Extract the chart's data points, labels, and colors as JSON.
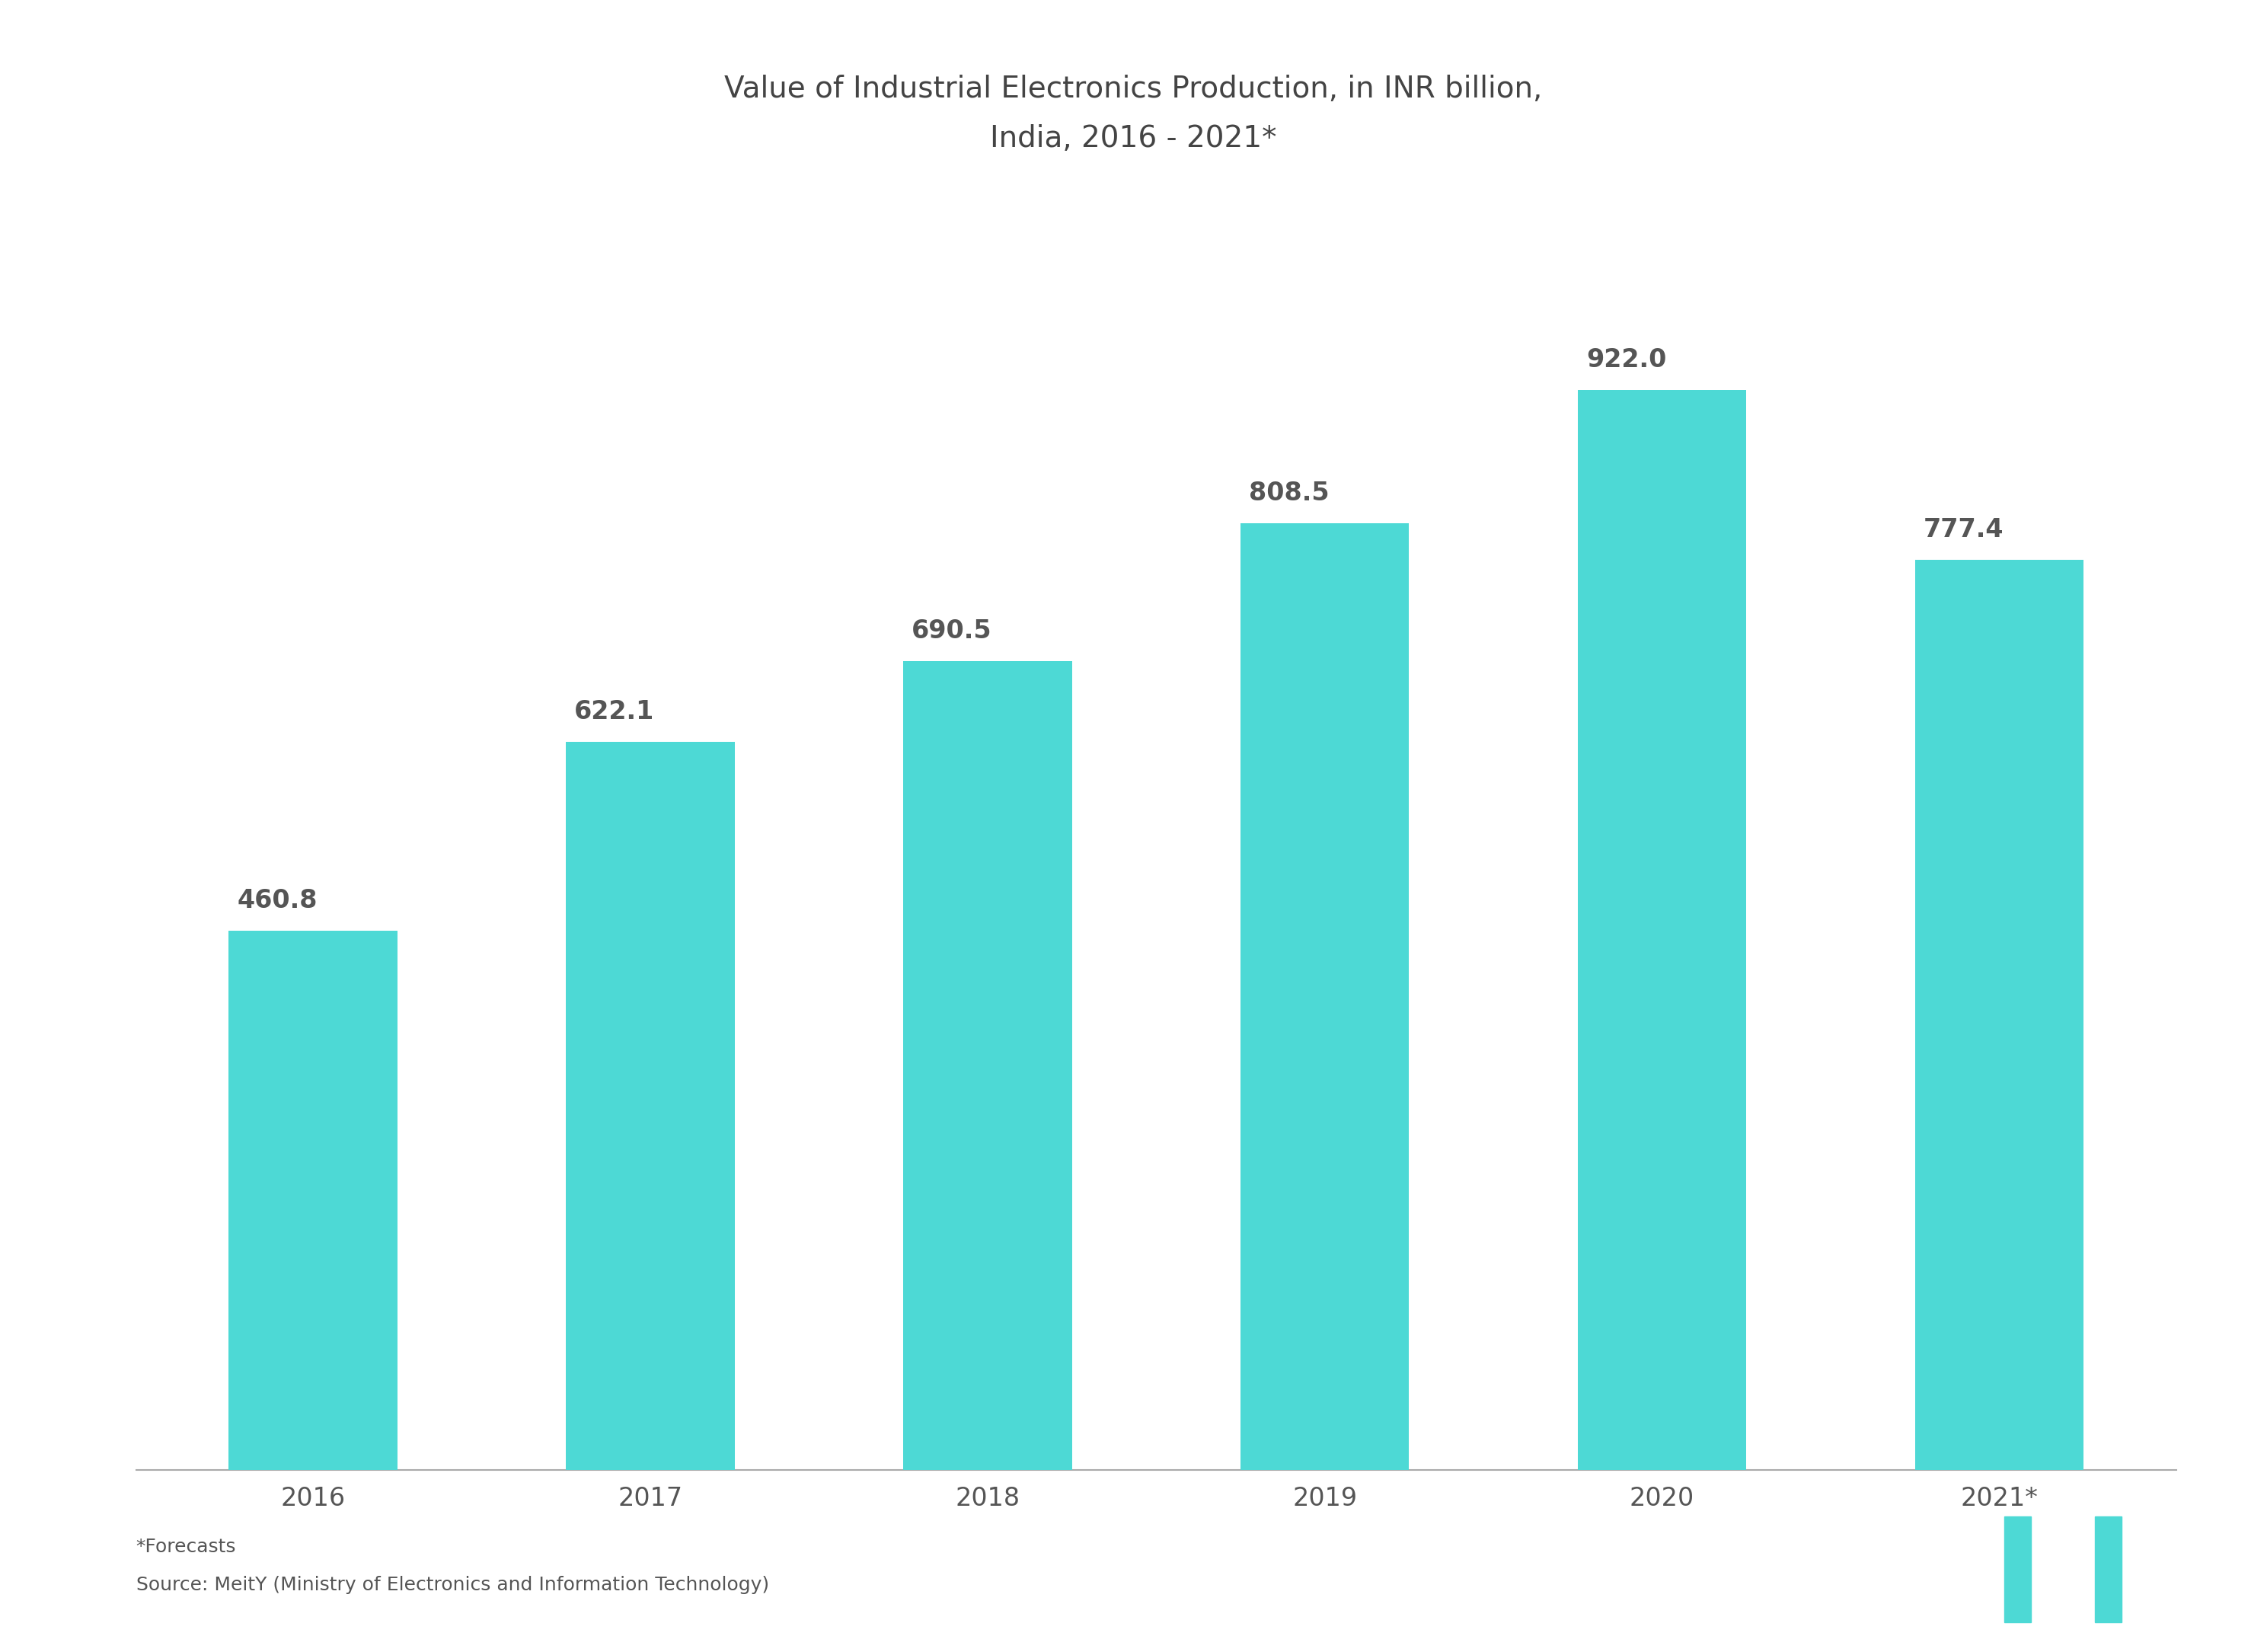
{
  "title_line1": "Value of Industrial Electronics Production, in INR billion,",
  "title_line2": "India, 2016 - 2021*",
  "categories": [
    "2016",
    "2017",
    "2018",
    "2019",
    "2020",
    "2021*"
  ],
  "values": [
    460.8,
    622.1,
    690.5,
    808.5,
    922.0,
    777.4
  ],
  "bar_color": "#4DD9D5",
  "background_color": "#ffffff",
  "text_color": "#555555",
  "title_color": "#444444",
  "value_label_color": "#555555",
  "footnote_line1": "*Forecasts",
  "footnote_line2": "Source: MeitY (Ministry of Electronics and Information Technology)",
  "ylim": [
    0,
    1100
  ],
  "bar_width": 0.5,
  "title_fontsize": 28,
  "tick_fontsize": 24,
  "value_fontsize": 24,
  "footnote_fontsize": 18
}
